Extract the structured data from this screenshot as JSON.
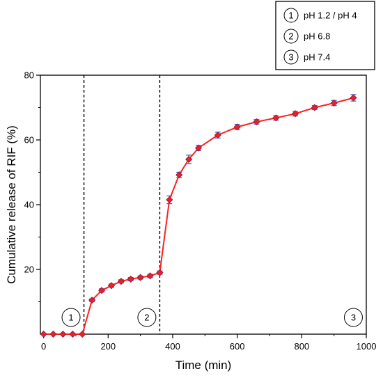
{
  "chart_data": {
    "type": "line",
    "xlabel": "Time (min)",
    "ylabel": "Cumulative release of RIF (%)",
    "xlim": [
      -10,
      1000
    ],
    "ylim": [
      0,
      80
    ],
    "x_ticks": [
      0,
      200,
      400,
      600,
      800,
      1000
    ],
    "y_ticks": [
      20,
      40,
      60,
      80
    ],
    "grid": false,
    "colors": {
      "line": "#ff2020",
      "marker": "#e8202a",
      "error_bar": "#4a4fc4"
    },
    "series": [
      {
        "x": [
          0,
          30,
          60,
          90,
          120,
          150,
          180,
          210,
          240,
          270,
          300,
          330,
          360,
          390,
          420,
          450,
          480,
          540,
          600,
          660,
          720,
          780,
          840,
          900,
          960
        ],
        "y": [
          0,
          0,
          0,
          0,
          0,
          10.5,
          13.5,
          15.0,
          16.3,
          17.0,
          17.5,
          18.0,
          19.0,
          41.5,
          49.2,
          54.0,
          57.5,
          61.5,
          64.0,
          65.6,
          66.8,
          68.1,
          70.0,
          71.4,
          73.0
        ],
        "error": [
          0,
          0,
          0,
          0,
          0,
          0.4,
          0.5,
          0.5,
          0.5,
          0.5,
          0.5,
          0.5,
          0.5,
          1.2,
          0.8,
          1.3,
          0.8,
          0.9,
          0.8,
          0.7,
          0.7,
          0.7,
          0.6,
          0.8,
          1.0
        ]
      }
    ],
    "phase_dividers_x": [
      125,
      360
    ],
    "phase_markers": [
      {
        "number": "1",
        "x": 85
      },
      {
        "number": "2",
        "x": 320
      },
      {
        "number": "3",
        "x": 960
      }
    ],
    "legend": {
      "placement": "top-right",
      "entries": [
        {
          "number": "1",
          "label": "pH 1.2 / pH 4"
        },
        {
          "number": "2",
          "label": "pH 6.8"
        },
        {
          "number": "3",
          "label": "pH 7.4"
        }
      ]
    }
  }
}
